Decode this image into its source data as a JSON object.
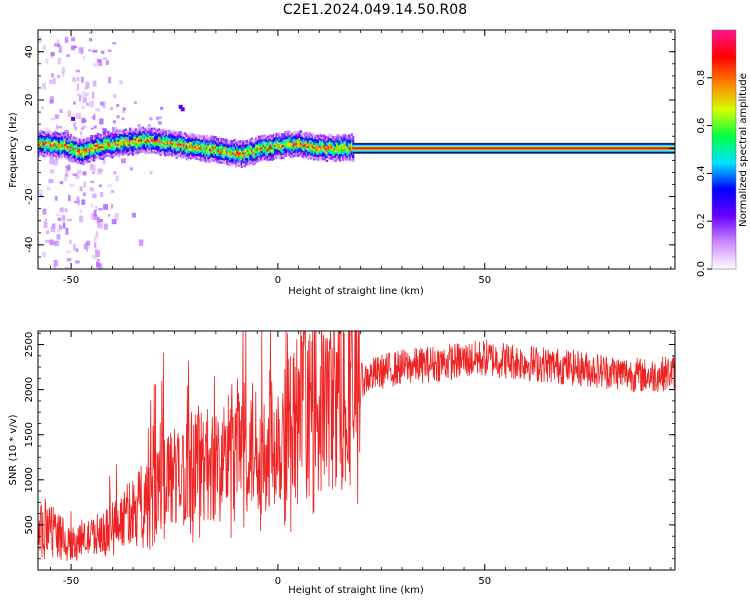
{
  "title": "C2E1.2024.049.14.50.R08",
  "chart_data": [
    {
      "type": "heatmap",
      "xlabel": "Height of straight line (km)",
      "ylabel": "Frequency (Hz)",
      "xlim": [
        -58,
        96
      ],
      "ylim": [
        -50,
        49
      ],
      "xticks": [
        -50,
        0,
        50
      ],
      "yticks": [
        -40,
        -20,
        0,
        20,
        40
      ],
      "xtick_labels": [
        "-50",
        "0",
        "50"
      ],
      "ytick_labels": [
        "-40",
        "-20",
        "0",
        "20",
        "40"
      ],
      "colorbar": {
        "label": "Normalized spectral amplitude",
        "range": [
          0,
          1
        ],
        "ticks": [
          0.0,
          0.2,
          0.4,
          0.6,
          0.8
        ],
        "tick_labels": [
          "0.0",
          "0.2",
          "0.4",
          "0.6",
          "0.8"
        ],
        "colormap": [
          "#ffffff",
          "#cc88ff",
          "#6a00ff",
          "#0000ff",
          "#00e5ff",
          "#00ff40",
          "#d4ff00",
          "#ff8000",
          "#ff0000",
          "#ff1493"
        ]
      },
      "ridge": [
        {
          "x": -58,
          "y": 1.5
        },
        {
          "x": -52,
          "y": 1.0
        },
        {
          "x": -48,
          "y": -2.0
        },
        {
          "x": -44,
          "y": 0.5
        },
        {
          "x": -38,
          "y": 2.0
        },
        {
          "x": -32,
          "y": 3.0
        },
        {
          "x": -26,
          "y": 1.5
        },
        {
          "x": -20,
          "y": 0.0
        },
        {
          "x": -14,
          "y": -1.0
        },
        {
          "x": -9,
          "y": -3.0
        },
        {
          "x": -5,
          "y": -1.0
        },
        {
          "x": 0,
          "y": 1.0
        },
        {
          "x": 5,
          "y": 1.5
        },
        {
          "x": 10,
          "y": 0.0
        },
        {
          "x": 15,
          "y": 0.0
        },
        {
          "x": 20,
          "y": 0.0
        },
        {
          "x": 96,
          "y": 0.0
        }
      ]
    },
    {
      "type": "line",
      "xlabel": "Height of straight line (km)",
      "ylabel": "SNR (10 * v/v)",
      "xlim": [
        -58,
        96
      ],
      "ylim": [
        0,
        2650
      ],
      "xticks": [
        -50,
        0,
        50
      ],
      "yticks": [
        500,
        1000,
        1500,
        2000,
        2500
      ],
      "xtick_labels": [
        "-50",
        "0",
        "50"
      ],
      "ytick_labels": [
        "500",
        "1000",
        "1500",
        "2000",
        "2500"
      ],
      "series_color": "#ee2222",
      "envelope": [
        {
          "x": -58,
          "y": 450
        },
        {
          "x": -55,
          "y": 500
        },
        {
          "x": -50,
          "y": 300
        },
        {
          "x": -46,
          "y": 350
        },
        {
          "x": -42,
          "y": 450
        },
        {
          "x": -37,
          "y": 600
        },
        {
          "x": -32,
          "y": 800
        },
        {
          "x": -28,
          "y": 1100
        },
        {
          "x": -24,
          "y": 1000
        },
        {
          "x": -20,
          "y": 1200
        },
        {
          "x": -15,
          "y": 1150
        },
        {
          "x": -10,
          "y": 1400
        },
        {
          "x": -5,
          "y": 1350
        },
        {
          "x": 0,
          "y": 1500
        },
        {
          "x": 5,
          "y": 1700
        },
        {
          "x": 10,
          "y": 1800
        },
        {
          "x": 15,
          "y": 1950
        },
        {
          "x": 20,
          "y": 2100
        },
        {
          "x": 25,
          "y": 2200
        },
        {
          "x": 30,
          "y": 2250
        },
        {
          "x": 40,
          "y": 2300
        },
        {
          "x": 50,
          "y": 2350
        },
        {
          "x": 60,
          "y": 2300
        },
        {
          "x": 70,
          "y": 2250
        },
        {
          "x": 80,
          "y": 2200
        },
        {
          "x": 90,
          "y": 2150
        },
        {
          "x": 96,
          "y": 2200
        }
      ]
    }
  ]
}
